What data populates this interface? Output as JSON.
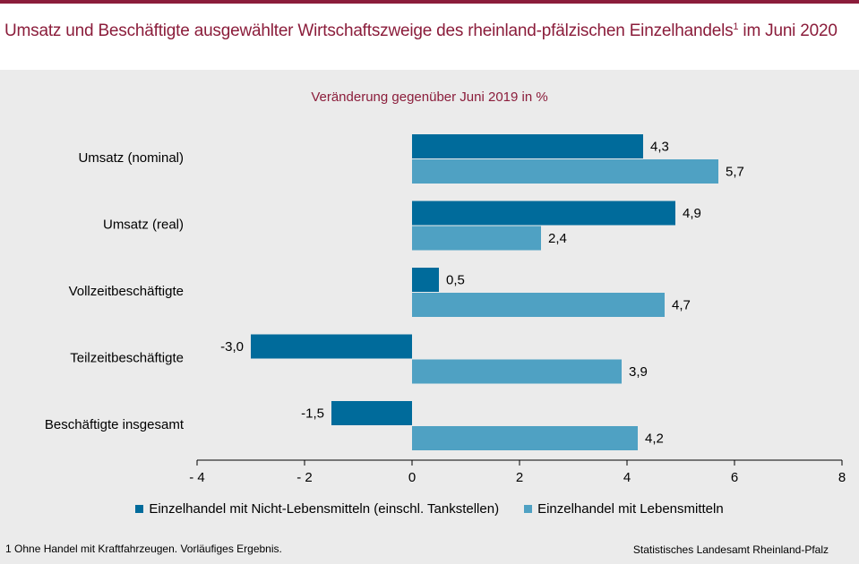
{
  "header": {
    "title": "Umsatz und Beschäftigte ausgewählter Wirtschaftszweige des rheinland-pfälzischen Einzelhandels",
    "title_sup": "1",
    "title_suffix": " im Juni 2020"
  },
  "chart_data": {
    "type": "bar",
    "orientation": "horizontal",
    "subtitle": "Veränderung gegenüber Juni 2019 in %",
    "categories": [
      "Umsatz (nominal)",
      "Umsatz (real)",
      "Vollzeitbeschäftigte",
      "Teilzeitbeschäftigte",
      "Beschäftigte insgesamt"
    ],
    "series": [
      {
        "name": "Einzelhandel mit Nicht-Lebensmitteln (einschl. Tankstellen)",
        "color": "#006b9b",
        "values": [
          4.3,
          4.9,
          0.5,
          -3.0,
          -1.5
        ],
        "labels": [
          "4,3",
          "4,9",
          "0,5",
          "-3,0",
          "-1,5"
        ]
      },
      {
        "name": "Einzelhandel mit Lebensmitteln",
        "color": "#4fa1c3",
        "values": [
          5.7,
          2.4,
          4.7,
          3.9,
          4.2
        ],
        "labels": [
          "5,7",
          "2,4",
          "4,7",
          "3,9",
          "4,2"
        ]
      }
    ],
    "xlim": [
      -4,
      8
    ],
    "xticks": [
      -4,
      -2,
      0,
      2,
      4,
      6,
      8
    ],
    "xtick_labels": [
      "- 4",
      "- 2",
      "0",
      "2",
      "4",
      "6",
      "8"
    ],
    "grid": false,
    "legend_position": "bottom"
  },
  "footer": {
    "footnote": "1 Ohne Handel mit Kraftfahrzeugen. Vorläufiges Ergebnis.",
    "source": "Statistisches Landesamt Rheinland-Pfalz"
  }
}
